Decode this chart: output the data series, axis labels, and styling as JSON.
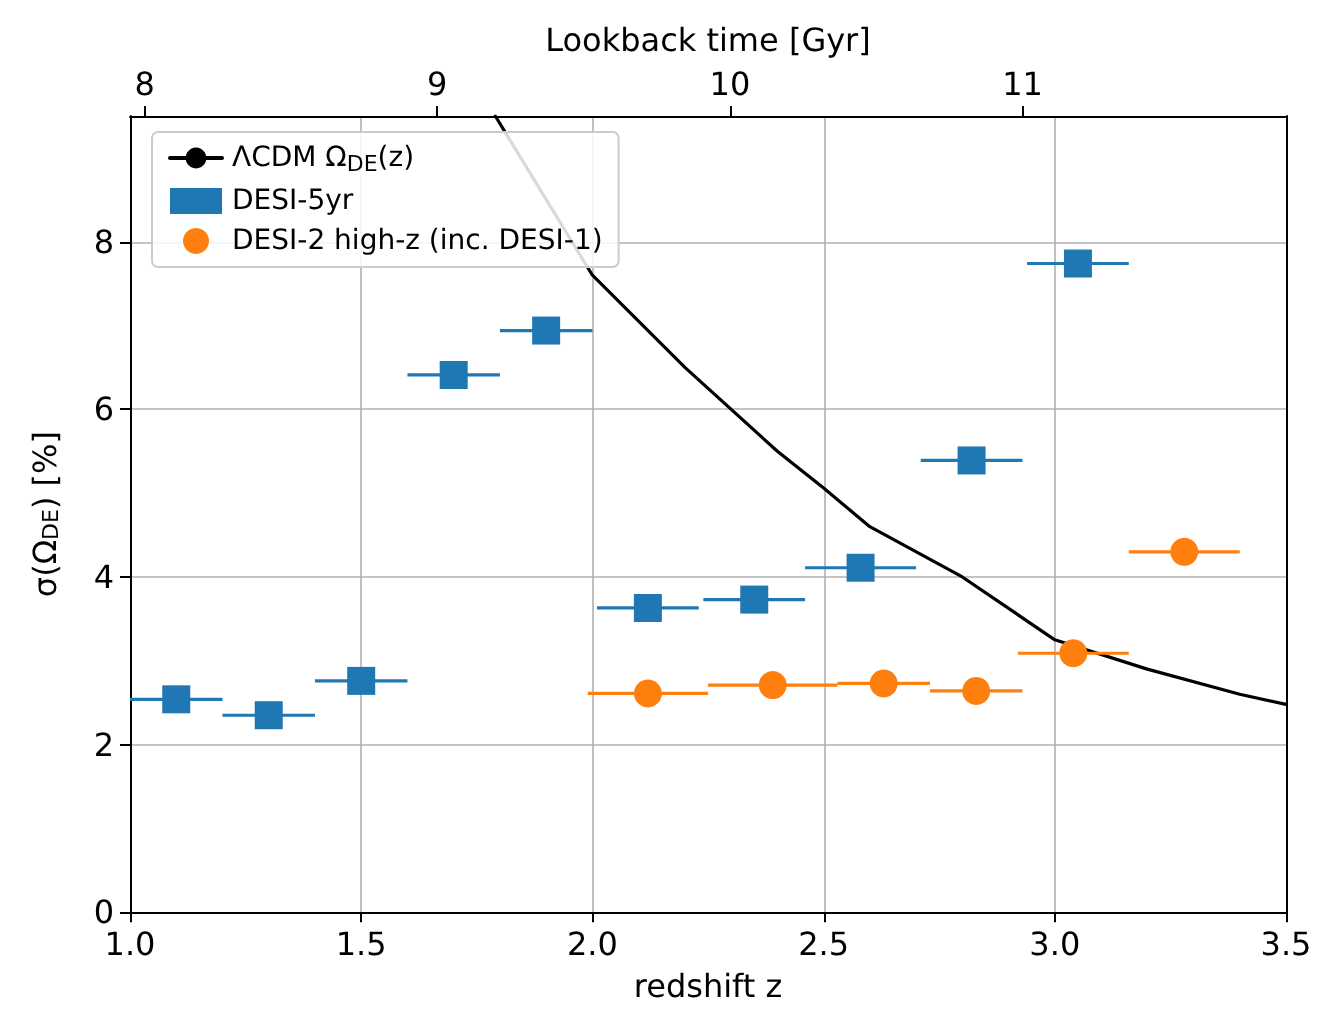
{
  "chart_data": {
    "type": "scatter",
    "xlabel": "redshift z",
    "ylabel": "σ(Ω$_{DE}$) [%]",
    "x2label": "Lookback time [Gyr]",
    "xlim": [
      1.0,
      3.5
    ],
    "xticks": [
      {
        "value": 1.0,
        "label": "1.0"
      },
      {
        "value": 1.5,
        "label": "1.5"
      },
      {
        "value": 2.0,
        "label": "2.0"
      },
      {
        "value": 2.5,
        "label": "2.5"
      },
      {
        "value": 3.0,
        "label": "3.0"
      },
      {
        "value": 3.5,
        "label": "3.5"
      }
    ],
    "x2lim": [
      7.95,
      11.9
    ],
    "x2ticks": [
      8,
      9,
      10,
      11
    ],
    "ylim": [
      0,
      9.5
    ],
    "yticks": [
      0,
      2,
      4,
      6,
      8
    ],
    "grid": true,
    "legend": "top left",
    "series": [
      {
        "name": "ΛCDM Ω$_{DE}$(z)",
        "type": "line",
        "color": "#000000",
        "marker": "none",
        "line_style": "solid",
        "x": [
          1.79,
          2.0,
          2.2,
          2.4,
          2.5,
          2.6,
          2.8,
          3.0,
          3.2,
          3.4,
          3.5
        ],
        "values": [
          9.5,
          7.6,
          6.5,
          5.5,
          5.06,
          4.6,
          4.0,
          3.25,
          2.9,
          2.6,
          2.48
        ]
      },
      {
        "name": "DESI-5yr",
        "color": "#1f77b4",
        "marker": "square",
        "x": [
          1.1,
          1.3,
          1.5,
          1.7,
          1.9,
          2.12,
          2.35,
          2.58,
          2.82,
          3.05
        ],
        "values": [
          2.54,
          2.35,
          2.76,
          6.41,
          6.94,
          3.63,
          3.73,
          4.11,
          5.39,
          7.74
        ],
        "xerrors": [
          0.1,
          0.1,
          0.1,
          0.1,
          0.1,
          0.11,
          0.11,
          0.12,
          0.11,
          0.11
        ]
      },
      {
        "name": "DESI-2 high-z (inc. DESI-1)",
        "color": "#ff7f0e",
        "marker": "circle",
        "x": [
          2.12,
          2.39,
          2.63,
          2.83,
          3.04,
          3.28
        ],
        "values": [
          2.61,
          2.71,
          2.73,
          2.64,
          3.09,
          4.3
        ],
        "xerrors": [
          0.13,
          0.14,
          0.1,
          0.1,
          0.12,
          0.12
        ]
      }
    ]
  }
}
